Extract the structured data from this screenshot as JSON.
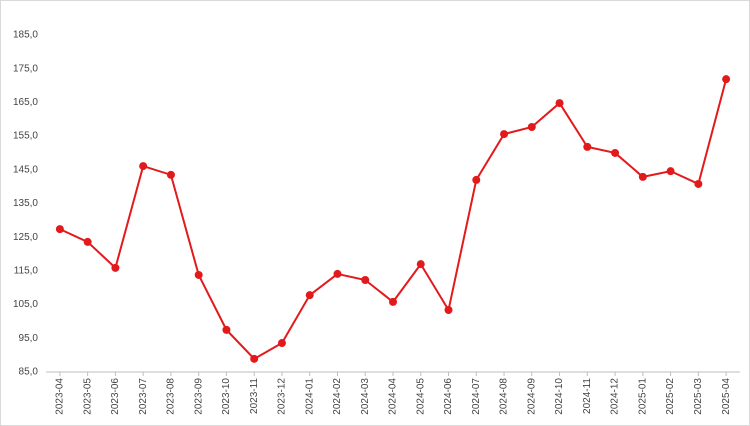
{
  "chart_data": {
    "type": "line",
    "categories": [
      "2023-04",
      "2023-05",
      "2023-06",
      "2023-07",
      "2023-08",
      "2023-09",
      "2023-10",
      "2023-11",
      "2023-12",
      "2024-01",
      "2024-02",
      "2024-03",
      "2024-04",
      "2024-05",
      "2024-06",
      "2024-07",
      "2024-08",
      "2024-09",
      "2024-10",
      "2024-11",
      "2024-12",
      "2025-01",
      "2025-02",
      "2025-03",
      "2025-04"
    ],
    "series": [
      {
        "color": "#e31a1c",
        "values": [
          127.4,
          123.6,
          115.9,
          146.1,
          143.5,
          113.8,
          97.5,
          88.9,
          93.6,
          107.8,
          114.1,
          112.3,
          105.8,
          117,
          103.4,
          142,
          155.6,
          157.7,
          164.8,
          151.8,
          150,
          142.9,
          144.6,
          140.8,
          171.9
        ]
      }
    ],
    "ylim": [
      85,
      185
    ],
    "yticks": [
      {
        "value": 85,
        "label": "85,0"
      },
      {
        "value": 95,
        "label": "95,0"
      },
      {
        "value": 105,
        "label": "105,0"
      },
      {
        "value": 115,
        "label": "115,0"
      },
      {
        "value": 125,
        "label": "125,0"
      },
      {
        "value": 135,
        "label": "135,0"
      },
      {
        "value": 145,
        "label": "145,0"
      },
      {
        "value": 155,
        "label": "155,0"
      },
      {
        "value": 165,
        "label": "165,0"
      },
      {
        "value": 175,
        "label": "175,0"
      },
      {
        "value": 185,
        "label": "185,0"
      }
    ],
    "grid": false
  }
}
